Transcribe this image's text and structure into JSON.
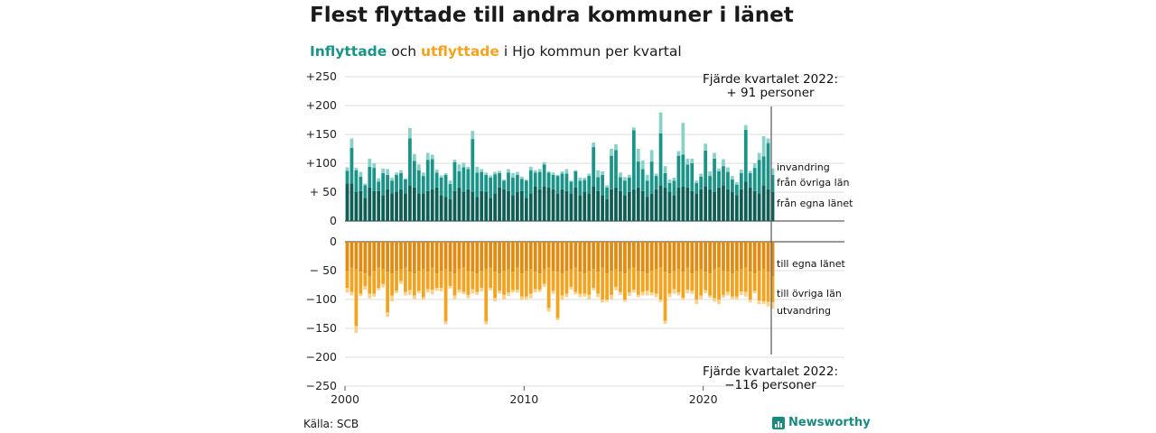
{
  "title": "Flest flyttade till andra kommuner i länet",
  "subtitle": {
    "in_word": "Inflyttade",
    "and_word": " och ",
    "out_word": "utflyttade",
    "rest": " i Hjo kommun per kvartal"
  },
  "source": "Källa: SCB",
  "brand": "Newsworthy",
  "colors": {
    "in_own": "#0f5e55",
    "in_other": "#1a9388",
    "in_immig": "#8ad1c8",
    "out_own": "#e08b12",
    "out_other": "#f2a31f",
    "out_emig": "#f9d18b"
  },
  "chart_data": {
    "type": "bar",
    "stacked": true,
    "x_start": "2000 Q1",
    "x_ticks": [
      "2000",
      "2010",
      "2020"
    ],
    "top_panel": {
      "ylim": [
        0,
        250
      ],
      "y_ticks": [
        "0",
        "+ 50",
        "+100",
        "+150",
        "+200",
        "+250"
      ],
      "annotation_lines": [
        "Fjärde kvartalet 2022:",
        "+ 91 personer"
      ],
      "series": [
        {
          "name": "från egna länet",
          "values": [
            65,
            65,
            50,
            52,
            40,
            58,
            52,
            52,
            45,
            55,
            48,
            50,
            55,
            48,
            62,
            58,
            48,
            48,
            52,
            55,
            58,
            45,
            42,
            38,
            52,
            58,
            50,
            55,
            50,
            42,
            52,
            50,
            40,
            48,
            58,
            55,
            52,
            45,
            50,
            52,
            40,
            48,
            60,
            55,
            60,
            58,
            55,
            48,
            55,
            52,
            48,
            58,
            45,
            50,
            48,
            60,
            52,
            45,
            38,
            55,
            58,
            52,
            45,
            50,
            55,
            58,
            52,
            42,
            48,
            55,
            62,
            58,
            50,
            45,
            58,
            60,
            58,
            52,
            48,
            55,
            60,
            55,
            50,
            58,
            62,
            55,
            50,
            45,
            55,
            68,
            58,
            52,
            48,
            62,
            55,
            50
          ]
        },
        {
          "name": "från övriga län",
          "values": [
            22,
            62,
            38,
            25,
            22,
            36,
            40,
            16,
            38,
            25,
            22,
            30,
            28,
            24,
            81,
            46,
            40,
            30,
            54,
            52,
            26,
            30,
            38,
            26,
            50,
            28,
            43,
            35,
            92,
            42,
            33,
            30,
            35,
            33,
            25,
            15,
            32,
            30,
            30,
            21,
            30,
            40,
            24,
            30,
            38,
            26,
            25,
            30,
            27,
            30,
            20,
            28,
            25,
            21,
            30,
            68,
            24,
            35,
            20,
            58,
            65,
            24,
            25,
            25,
            102,
            45,
            38,
            28,
            55,
            23,
            90,
            25,
            16,
            25,
            55,
            55,
            40,
            48,
            18,
            22,
            62,
            23,
            58,
            28,
            33,
            30,
            22,
            18,
            28,
            90,
            25,
            40,
            58,
            50,
            80,
            30
          ]
        },
        {
          "name": "invandring",
          "values": [
            6,
            16,
            4,
            8,
            3,
            14,
            8,
            6,
            8,
            10,
            5,
            4,
            5,
            2,
            18,
            12,
            10,
            6,
            12,
            8,
            5,
            4,
            3,
            6,
            4,
            12,
            8,
            4,
            14,
            10,
            5,
            4,
            4,
            4,
            4,
            2,
            6,
            8,
            5,
            4,
            2,
            6,
            4,
            5,
            4,
            2,
            4,
            2,
            4,
            8,
            2,
            2,
            5,
            4,
            4,
            8,
            12,
            6,
            4,
            12,
            10,
            8,
            6,
            5,
            5,
            22,
            15,
            10,
            20,
            4,
            36,
            12,
            6,
            5,
            8,
            55,
            10,
            8,
            4,
            5,
            12,
            8,
            10,
            5,
            12,
            8,
            6,
            4,
            6,
            8,
            4,
            8,
            12,
            35,
            8,
            11
          ]
        }
      ],
      "labels": [
        "invandring",
        "från övriga län",
        "från egna länet"
      ]
    },
    "bottom_panel": {
      "ylim": [
        -250,
        0
      ],
      "y_ticks": [
        "0",
        "− 50",
        "−100",
        "−150",
        "−200",
        "−250"
      ],
      "annotation_lines": [
        "Fjärde kvartalet 2022:",
        "−116 personer"
      ],
      "series": [
        {
          "name": "till egna länet",
          "values": [
            -50,
            -45,
            -48,
            -52,
            -55,
            -60,
            -50,
            -45,
            -48,
            -52,
            -55,
            -50,
            -48,
            -45,
            -52,
            -55,
            -50,
            -48,
            -52,
            -45,
            -55,
            -50,
            -48,
            -52,
            -55,
            -48,
            -45,
            -50,
            -52,
            -55,
            -50,
            -48,
            -45,
            -52,
            -55,
            -50,
            -48,
            -52,
            -45,
            -55,
            -50,
            -48,
            -52,
            -55,
            -48,
            -45,
            -50,
            -52,
            -55,
            -50,
            -48,
            -45,
            -52,
            -55,
            -50,
            -48,
            -52,
            -45,
            -55,
            -50,
            -48,
            -52,
            -55,
            -48,
            -45,
            -50,
            -52,
            -55,
            -50,
            -48,
            -45,
            -52,
            -55,
            -50,
            -48,
            -52,
            -45,
            -55,
            -50,
            -48,
            -52,
            -55,
            -48,
            -45,
            -50,
            -52,
            -55,
            -50,
            -48,
            -45,
            -52,
            -55,
            -50,
            -48,
            -52,
            -60
          ]
        },
        {
          "name": "till övriga län",
          "values": [
            -30,
            -42,
            -98,
            -38,
            -22,
            -30,
            -40,
            -35,
            -25,
            -70,
            -38,
            -35,
            -20,
            -42,
            -32,
            -38,
            -35,
            -48,
            -30,
            -38,
            -25,
            -30,
            -90,
            -25,
            -38,
            -35,
            -42,
            -42,
            -30,
            -32,
            -30,
            -90,
            -35,
            -45,
            -30,
            -42,
            -40,
            -32,
            -38,
            -40,
            -45,
            -42,
            -30,
            -28,
            -25,
            -70,
            -35,
            -80,
            -38,
            -40,
            -30,
            -42,
            -38,
            -35,
            -42,
            -32,
            -38,
            -55,
            -45,
            -42,
            -30,
            -35,
            -45,
            -40,
            -38,
            -42,
            -35,
            -30,
            -38,
            -42,
            -55,
            -85,
            -35,
            -32,
            -40,
            -45,
            -38,
            -30,
            -50,
            -45,
            -32,
            -38,
            -50,
            -55,
            -42,
            -35,
            -40,
            -45,
            -38,
            -42,
            -48,
            -30,
            -52,
            -55,
            -52,
            -45
          ]
        },
        {
          "name": "utvandring",
          "values": [
            -8,
            -6,
            -12,
            -4,
            -6,
            -8,
            -5,
            -4,
            -6,
            -8,
            -10,
            -4,
            -5,
            -6,
            -8,
            -6,
            -4,
            -5,
            -6,
            -8,
            -5,
            -6,
            -5,
            -4,
            -6,
            -5,
            -4,
            -6,
            -8,
            -5,
            -6,
            -5,
            -4,
            -6,
            -5,
            -8,
            -6,
            -4,
            -5,
            -6,
            -5,
            -8,
            -6,
            -4,
            -5,
            -6,
            -5,
            -4,
            -8,
            -6,
            -5,
            -4,
            -6,
            -5,
            -8,
            -4,
            -6,
            -5,
            -4,
            -8,
            -6,
            -5,
            -4,
            -6,
            -5,
            -4,
            -6,
            -8,
            -5,
            -6,
            -4,
            -5,
            -6,
            -8,
            -5,
            -4,
            -6,
            -5,
            -8,
            -6,
            -5,
            -4,
            -6,
            -8,
            -5,
            -6,
            -4,
            -5,
            -6,
            -8,
            -5,
            -4,
            -6,
            -5,
            -8,
            -11
          ]
        }
      ],
      "labels": [
        "till egna länet",
        "till övriga län",
        "utvandring"
      ]
    }
  }
}
